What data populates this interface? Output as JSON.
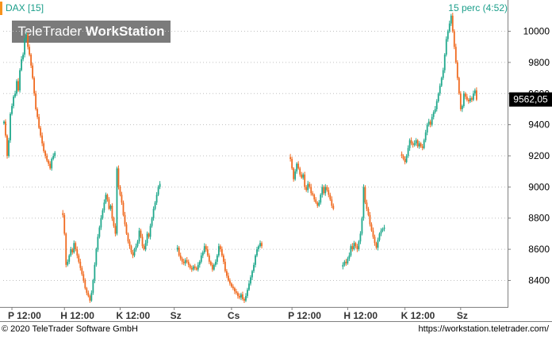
{
  "header": {
    "title": "DAX [15]",
    "interval": "15 perc (4:52)",
    "logo_regular": "TeleTrader ",
    "logo_bold": "WorkStation"
  },
  "footer": {
    "copyright": "© 2020 TeleTrader Software GmbH",
    "url": "https://workstation.teletrader.com/"
  },
  "colors": {
    "up": "#20a88c",
    "down": "#f06a1f",
    "axis": "#7f7f7f",
    "grid": "#c0c0c0",
    "price_box": "#000000"
  },
  "chart_data": {
    "type": "candlestick",
    "ylim": [
      8250,
      10150
    ],
    "yticks": [
      8400,
      8600,
      8800,
      9000,
      9200,
      9400,
      9600,
      9800,
      10000
    ],
    "ytick_labels": [
      "8400",
      "8600",
      "8800",
      "9000",
      "9200",
      "9400",
      "9600",
      "9800",
      "10000"
    ],
    "xticks": [
      {
        "i": 5,
        "label": "P 12:00"
      },
      {
        "i": 38,
        "label": "H 12:00"
      },
      {
        "i": 73,
        "label": "K 12:00"
      },
      {
        "i": 107,
        "label": "Sz"
      },
      {
        "i": 143,
        "label": "Cs"
      },
      {
        "i": 181,
        "label": "P 12:00"
      },
      {
        "i": 216,
        "label": "H 12:00"
      },
      {
        "i": 252,
        "label": "K 12:00"
      },
      {
        "i": 287,
        "label": "Sz"
      }
    ],
    "n_slots": 316,
    "last_price": "9562,05",
    "last_value": 9562.05,
    "candles": [
      {
        "start": 0,
        "path": [
          9420,
          9330,
          9200,
          9300,
          9470,
          9520,
          9580,
          9600,
          9680,
          9620,
          9750,
          9820,
          9850,
          9950,
          9980,
          9900,
          9850,
          9780,
          9700,
          9600,
          9500,
          9450,
          9380,
          9330,
          9280,
          9230,
          9200,
          9170,
          9150,
          9120,
          9180,
          9200,
          9220
        ]
      },
      {
        "start": 37,
        "path": [
          8820,
          8700,
          8500,
          8520,
          8560,
          8600,
          8580,
          8640,
          8600,
          8560,
          8520,
          8480,
          8440,
          8400,
          8350,
          8320,
          8300,
          8270,
          8320,
          8400,
          8500,
          8600,
          8680,
          8740,
          8800,
          8850,
          8900,
          8950,
          8920,
          8860,
          8880,
          8800,
          8750,
          8700,
          9120,
          9000,
          8950,
          8900,
          8820,
          8760,
          8700,
          8650,
          8620,
          8580,
          8560,
          8600,
          8620,
          8650,
          8720,
          8680,
          8620,
          8600,
          8640,
          8700,
          8680,
          8750,
          8800,
          8860,
          8900,
          8950,
          9000,
          9020
        ]
      },
      {
        "start": 109,
        "path": [
          8610,
          8560,
          8540,
          8520,
          8510,
          8530,
          8520,
          8500,
          8480,
          8470,
          8490,
          8480,
          8470,
          8500,
          8520,
          8560,
          8580,
          8620,
          8600,
          8560,
          8520,
          8500,
          8470,
          8500,
          8520,
          8560,
          8620,
          8600,
          8560,
          8520,
          8460,
          8430,
          8400,
          8380,
          8360,
          8350,
          8330,
          8320,
          8300,
          8290,
          8310,
          8280,
          8270,
          8300,
          8340,
          8380,
          8420,
          8460,
          8500,
          8560,
          8600,
          8620,
          8640,
          8620
        ]
      },
      {
        "start": 180,
        "path": [
          9180,
          9120,
          9050,
          9100,
          9150,
          9120,
          9080,
          9060,
          9080,
          9000,
          8980,
          9020,
          9000,
          8960,
          8950,
          8920,
          8900,
          8880,
          8900,
          8950,
          9000,
          8960,
          9000,
          8980,
          8950,
          8920,
          8880,
          8860
        ]
      },
      {
        "start": 213,
        "path": [
          8500,
          8520,
          8510,
          8540,
          8560,
          8620,
          8600,
          8640,
          8620,
          8600,
          8650,
          8700,
          8800,
          9000,
          8900,
          8860,
          8820,
          8760,
          8720,
          8680,
          8640,
          8610,
          8660,
          8700,
          8720,
          8730,
          8740
        ]
      },
      {
        "start": 250,
        "path": [
          9200,
          9180,
          9160,
          9200,
          9250,
          9300,
          9280,
          9270,
          9280,
          9300,
          9260,
          9280,
          9260,
          9250,
          9300,
          9350,
          9400,
          9420,
          9400,
          9450,
          9480,
          9500,
          9550,
          9600,
          9650,
          9700,
          9750,
          9850,
          9950,
          10000,
          10050,
          10100,
          10000,
          9900,
          9800,
          9700,
          9600,
          9500,
          9520,
          9600,
          9580,
          9560,
          9550,
          9570,
          9560,
          9600,
          9620,
          9560
        ]
      }
    ]
  }
}
